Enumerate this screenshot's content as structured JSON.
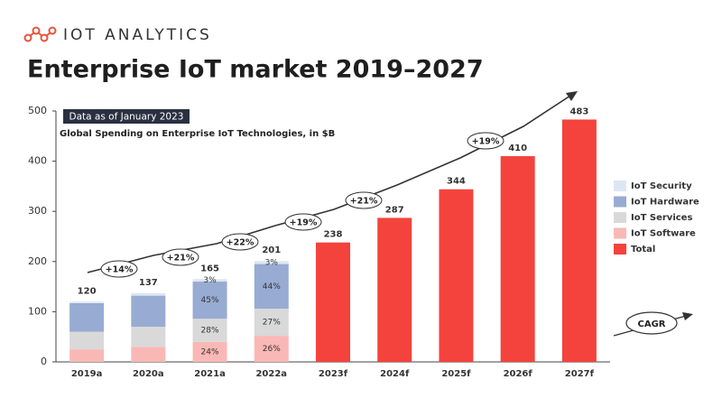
{
  "brand": "IOT ANALYTICS",
  "chart_data": {
    "type": "stacked_bar",
    "title": "Enterprise IoT market 2019–2027",
    "badge": "Data as of January 2023",
    "subtitle": "Global Spending on Enterprise IoT Technologies, in $B",
    "categories": [
      "2019a",
      "2020a",
      "2021a",
      "2022a",
      "2023f",
      "2024f",
      "2025f",
      "2026f",
      "2027f"
    ],
    "series": [
      {
        "name": "IoT Software",
        "color": "#f9b8b5",
        "values": [
          25,
          30,
          40,
          52,
          null,
          null,
          null,
          null,
          null
        ],
        "share_labels": [
          null,
          null,
          "24%",
          "26%",
          null,
          null,
          null,
          null,
          null
        ]
      },
      {
        "name": "IoT Services",
        "color": "#d9d9d9",
        "values": [
          35,
          40,
          46,
          54,
          null,
          null,
          null,
          null,
          null
        ],
        "share_labels": [
          null,
          null,
          "28%",
          "27%",
          null,
          null,
          null,
          null,
          null
        ]
      },
      {
        "name": "IoT Hardware",
        "color": "#98abd2",
        "values": [
          57,
          62,
          74,
          89,
          null,
          null,
          null,
          null,
          null
        ],
        "share_labels": [
          null,
          null,
          "45%",
          "44%",
          null,
          null,
          null,
          null,
          null
        ]
      },
      {
        "name": "IoT Security",
        "color": "#dde6f2",
        "values": [
          3,
          5,
          5,
          6,
          null,
          null,
          null,
          null,
          null
        ],
        "share_labels": [
          null,
          null,
          "3%",
          "3%",
          null,
          null,
          null,
          null,
          null
        ]
      },
      {
        "name": "Total",
        "color": "#f4433c",
        "values": [
          null,
          null,
          null,
          null,
          238,
          287,
          344,
          410,
          483
        ]
      }
    ],
    "stack_totals": [
      120,
      137,
      165,
      201,
      null,
      null,
      null,
      null,
      null
    ],
    "legend_order": [
      3,
      2,
      1,
      0,
      4
    ],
    "legend": "right",
    "cagr_labels": [
      "+14%",
      "+21%",
      "+22%",
      "+19%",
      "+21%",
      "+19%"
    ],
    "cagr_note": "CAGR",
    "ylim": [
      0,
      500
    ],
    "yticks": [
      0,
      100,
      200,
      300,
      400,
      500
    ],
    "grid": false
  }
}
